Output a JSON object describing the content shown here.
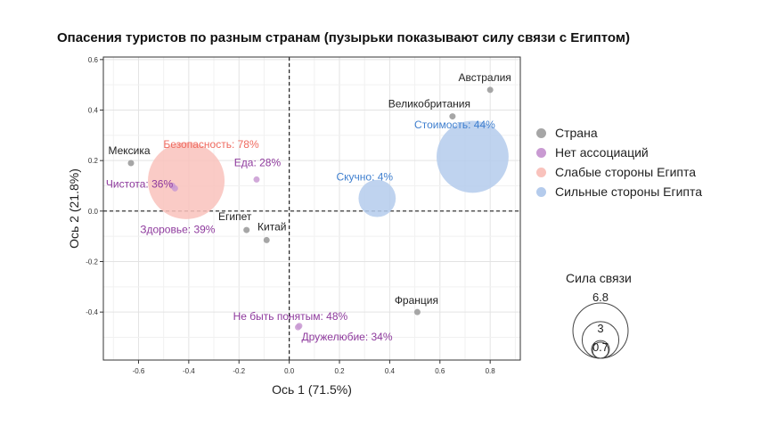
{
  "chart_data": {
    "type": "scatter",
    "title": "Опасения туристов по разным странам (пузырьки показывают силу связи с Египтом)",
    "xlabel": "Ось 1 (71.5%)",
    "ylabel": "Ось 2 (21.8%)",
    "xlim": [
      -0.74,
      0.92
    ],
    "ylim": [
      -0.59,
      0.61
    ],
    "xticks": [
      "-0.6",
      "-0.4",
      "-0.2",
      "0.0",
      "0.2",
      "0.4",
      "0.6",
      "0.8"
    ],
    "yticks": [
      "-0.4",
      "-0.2",
      "0.0",
      "0.2",
      "0.4",
      "0.6"
    ],
    "xtick_values": [
      -0.6,
      -0.4,
      -0.2,
      0.0,
      0.2,
      0.4,
      0.6,
      0.8
    ],
    "ytick_values": [
      -0.4,
      -0.2,
      0.0,
      0.2,
      0.4,
      0.6
    ],
    "grid": true,
    "reference_lines": [
      0,
      0
    ],
    "legend_placement": "right",
    "colors": {
      "country": "#a6a6a6",
      "no_association": "#c99ad2",
      "weak": "#f9c2bc",
      "strong": "#b4cbec",
      "label_country": "#222222",
      "label_no_association": "#8e3a9d",
      "label_weak": "#ef6a5f",
      "label_strong": "#3f7fcf"
    },
    "series": [
      {
        "name": "Страна",
        "color_key": "country",
        "points": [
          {
            "label": "Австралия",
            "x": 0.8,
            "y": 0.48
          },
          {
            "label": "Великобритания",
            "x": 0.65,
            "y": 0.375
          },
          {
            "label": "Мексика",
            "x": -0.63,
            "y": 0.19
          },
          {
            "label": "Египет",
            "x": -0.17,
            "y": -0.075
          },
          {
            "label": "Китай",
            "x": -0.09,
            "y": -0.115
          },
          {
            "label": "Франция",
            "x": 0.51,
            "y": -0.4
          }
        ]
      },
      {
        "name": "Нет ассоциаций",
        "color_key": "no_association",
        "points": [
          {
            "label": "Еда: 28%",
            "x": -0.13,
            "y": 0.125,
            "strength": 0.3
          },
          {
            "label": "Чистота: 36%",
            "x": -0.465,
            "y": 0.1,
            "strength": 0.5
          },
          {
            "label": "Здоровье: 39%",
            "x": -0.455,
            "y": 0.09,
            "strength": 0.5
          },
          {
            "label": "Не быть понятым: 48%",
            "x": 0.04,
            "y": -0.455,
            "strength": 0.35
          },
          {
            "label": "Дружелюбие: 34%",
            "x": 0.035,
            "y": -0.46,
            "strength": 0.3
          }
        ]
      },
      {
        "name": "Слабые стороны Египта",
        "color_key": "weak",
        "points": [
          {
            "label": "Безопасность: 78%",
            "x": -0.41,
            "y": 0.12,
            "strength": 6.8
          }
        ]
      },
      {
        "name": "Сильные стороны Египта",
        "color_key": "strong",
        "points": [
          {
            "label": "Стоимость: 44%",
            "x": 0.73,
            "y": 0.215,
            "strength": 6.0
          },
          {
            "label": "Скучно: 4%",
            "x": 0.35,
            "y": 0.05,
            "strength": 1.6
          }
        ]
      }
    ],
    "size_legend": {
      "title": "Сила связи",
      "values": [
        "6.8",
        "3",
        "0.7"
      ],
      "strengths": [
        6.8,
        3,
        0.7
      ]
    }
  }
}
